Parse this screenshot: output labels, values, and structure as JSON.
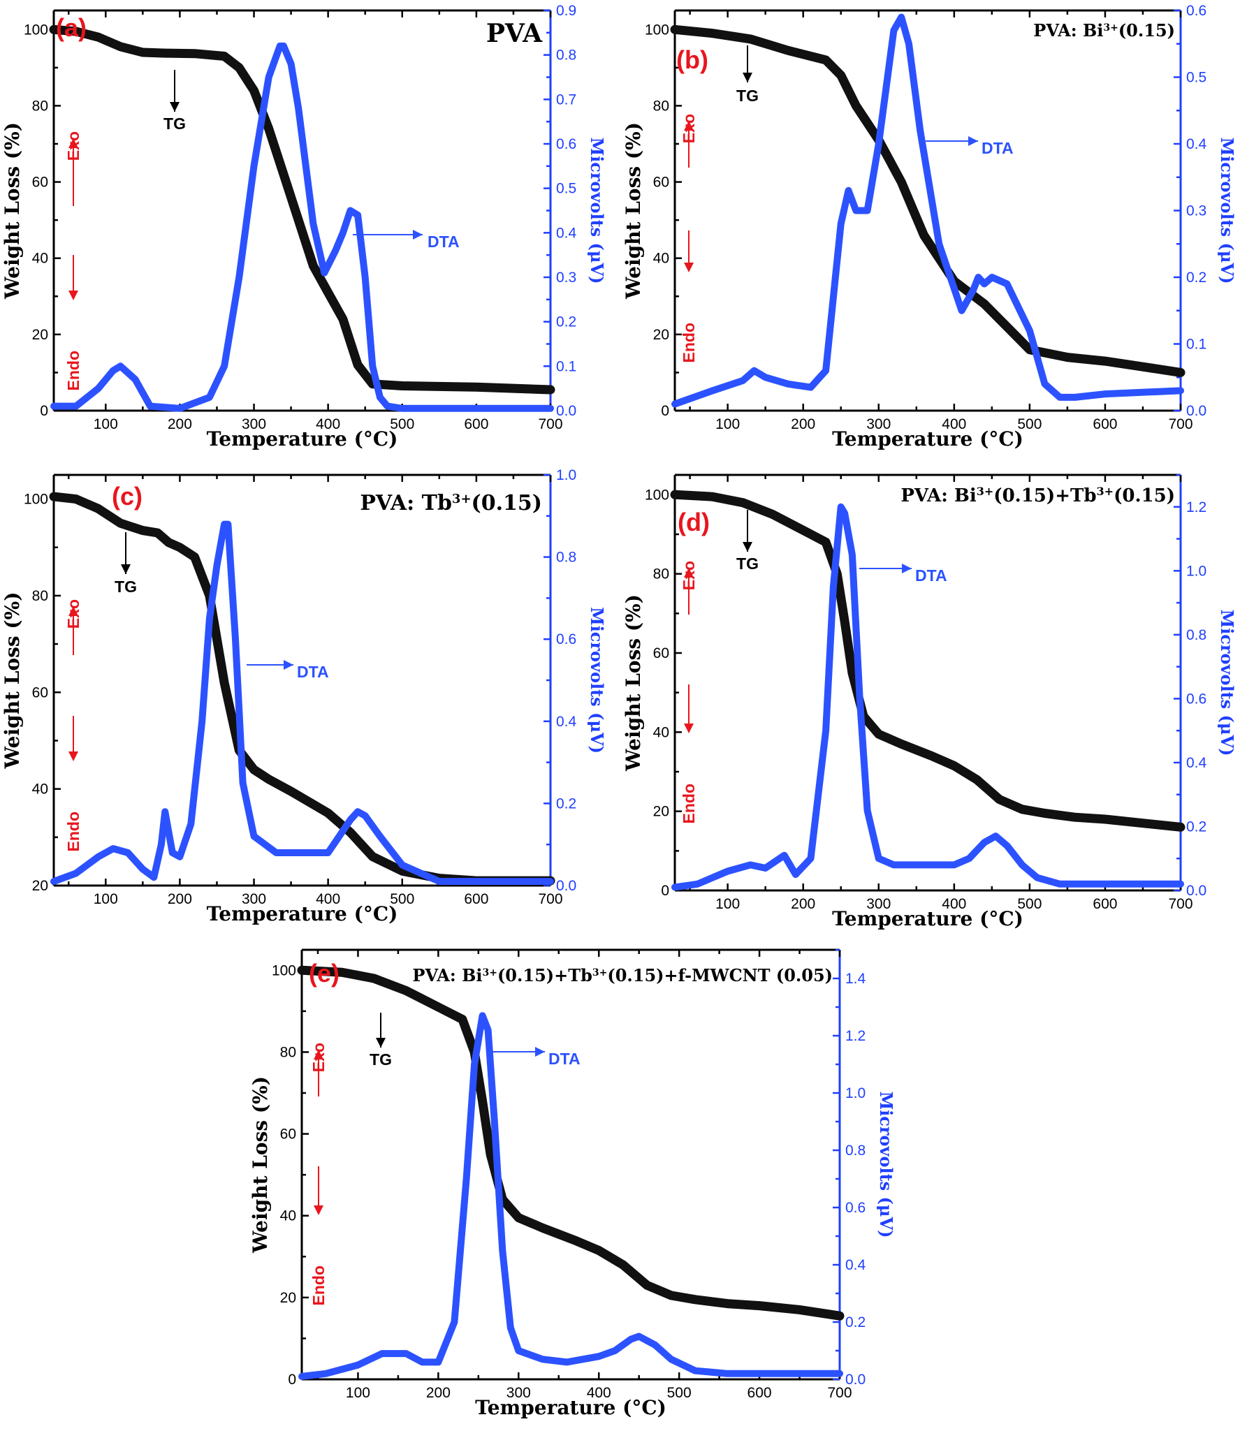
{
  "figure": {
    "x_axis_label": "Temperature (°C)",
    "left_axis_label": "Weight Loss (%)",
    "right_axis_label": "Microvolts (μV)",
    "tg_label": "TG",
    "dta_label": "DTA",
    "exo_label": "Exo",
    "endo_label": "Endo",
    "colors": {
      "tg": "#111111",
      "dta": "#2c52ff",
      "panel_letter": "#e8161d",
      "exo_endo": "#e8161d"
    }
  },
  "chart_data": [
    {
      "type": "line",
      "panel": "(a)",
      "title": "PVA",
      "xlabel": "Temperature (°C)",
      "ylabel": "Weight Loss (%)",
      "y2label": "Microvolts (μV)",
      "xlim": [
        30,
        700
      ],
      "ylim": [
        0,
        105
      ],
      "y2lim": [
        0,
        0.9
      ],
      "xticks": [
        100,
        200,
        300,
        400,
        500,
        600,
        700
      ],
      "yticks": [
        0,
        20,
        40,
        60,
        80,
        100
      ],
      "y2ticks": [
        0.0,
        0.1,
        0.2,
        0.3,
        0.4,
        0.5,
        0.6,
        0.7,
        0.8,
        0.9
      ],
      "series": [
        {
          "name": "TG",
          "axis": "left",
          "color": "#111111",
          "x": [
            30,
            60,
            90,
            120,
            150,
            180,
            220,
            260,
            280,
            300,
            320,
            340,
            360,
            380,
            400,
            420,
            440,
            460,
            500,
            600,
            700
          ],
          "y": [
            100,
            99.5,
            98,
            95.5,
            94,
            93.8,
            93.7,
            93,
            90,
            84,
            74,
            62,
            50,
            38,
            31,
            24,
            12,
            7,
            6.5,
            6.2,
            5.5
          ]
        },
        {
          "name": "DTA",
          "axis": "right",
          "color": "#2c52ff",
          "x": [
            30,
            60,
            90,
            110,
            120,
            140,
            160,
            200,
            240,
            260,
            280,
            300,
            320,
            335,
            340,
            350,
            360,
            380,
            395,
            410,
            420,
            430,
            440,
            450,
            460,
            470,
            480,
            500,
            600,
            700
          ],
          "y": [
            0.01,
            0.01,
            0.05,
            0.09,
            0.1,
            0.07,
            0.01,
            0.005,
            0.03,
            0.1,
            0.3,
            0.55,
            0.75,
            0.82,
            0.82,
            0.78,
            0.68,
            0.42,
            0.31,
            0.36,
            0.4,
            0.45,
            0.44,
            0.3,
            0.1,
            0.03,
            0.01,
            0.005,
            0.005,
            0.005
          ]
        }
      ]
    },
    {
      "type": "line",
      "panel": "(b)",
      "title": "PVA: Bi³⁺(0.15)",
      "xlabel": "Temperature (°C)",
      "ylabel": "Weight Loss (%)",
      "y2label": "Microvolts (μV)",
      "xlim": [
        30,
        700
      ],
      "ylim": [
        0,
        105
      ],
      "y2lim": [
        0,
        0.6
      ],
      "xticks": [
        100,
        200,
        300,
        400,
        500,
        600,
        700
      ],
      "yticks": [
        0,
        20,
        40,
        60,
        80,
        100
      ],
      "y2ticks": [
        0.0,
        0.1,
        0.2,
        0.3,
        0.4,
        0.5,
        0.6
      ],
      "series": [
        {
          "name": "TG",
          "axis": "left",
          "color": "#111111",
          "x": [
            30,
            80,
            130,
            180,
            230,
            250,
            270,
            300,
            330,
            360,
            400,
            440,
            470,
            500,
            550,
            600,
            650,
            700
          ],
          "y": [
            100,
            99,
            97.5,
            94.5,
            92,
            88,
            80,
            71,
            60,
            46,
            34,
            28,
            22,
            16,
            14,
            13,
            11.5,
            10
          ]
        },
        {
          "name": "DTA",
          "axis": "right",
          "color": "#2c52ff",
          "x": [
            30,
            80,
            120,
            135,
            150,
            180,
            210,
            230,
            250,
            260,
            270,
            285,
            300,
            320,
            330,
            340,
            355,
            380,
            410,
            425,
            432,
            440,
            450,
            470,
            500,
            520,
            540,
            560,
            600,
            700
          ],
          "y": [
            0.01,
            0.03,
            0.045,
            0.06,
            0.05,
            0.04,
            0.035,
            0.06,
            0.28,
            0.33,
            0.3,
            0.3,
            0.4,
            0.57,
            0.59,
            0.55,
            0.42,
            0.25,
            0.15,
            0.18,
            0.2,
            0.19,
            0.2,
            0.19,
            0.12,
            0.04,
            0.02,
            0.02,
            0.025,
            0.03
          ]
        }
      ]
    },
    {
      "type": "line",
      "panel": "(c)",
      "title": "PVA: Tb³⁺(0.15)",
      "xlabel": "Temperature (°C)",
      "ylabel": "Weight Loss (%)",
      "y2label": "Microvolts (μV)",
      "xlim": [
        30,
        700
      ],
      "ylim": [
        20,
        105
      ],
      "y2lim": [
        0,
        1.0
      ],
      "xticks": [
        100,
        200,
        300,
        400,
        500,
        600,
        700
      ],
      "yticks": [
        20,
        40,
        60,
        80,
        100
      ],
      "y2ticks": [
        0.0,
        0.2,
        0.4,
        0.6,
        0.8,
        1.0
      ],
      "series": [
        {
          "name": "TG",
          "axis": "left",
          "color": "#111111",
          "x": [
            30,
            60,
            90,
            120,
            150,
            170,
            185,
            200,
            220,
            240,
            260,
            280,
            300,
            320,
            350,
            400,
            430,
            460,
            500,
            550,
            600,
            700
          ],
          "y": [
            100.5,
            100,
            98,
            95,
            93.5,
            93,
            91,
            90,
            88,
            80,
            62,
            48,
            44,
            42,
            39.5,
            35,
            31,
            26,
            23,
            21.5,
            21,
            21
          ]
        },
        {
          "name": "DTA",
          "axis": "right",
          "color": "#2c52ff",
          "x": [
            30,
            60,
            90,
            110,
            130,
            150,
            165,
            175,
            180,
            190,
            200,
            215,
            230,
            240,
            250,
            260,
            265,
            275,
            285,
            300,
            330,
            360,
            400,
            430,
            440,
            450,
            470,
            500,
            550,
            600,
            700
          ],
          "y": [
            0.01,
            0.03,
            0.07,
            0.09,
            0.08,
            0.04,
            0.02,
            0.1,
            0.18,
            0.08,
            0.07,
            0.15,
            0.4,
            0.65,
            0.78,
            0.88,
            0.88,
            0.6,
            0.25,
            0.12,
            0.08,
            0.08,
            0.08,
            0.16,
            0.18,
            0.17,
            0.12,
            0.05,
            0.01,
            0.01,
            0.01
          ]
        }
      ]
    },
    {
      "type": "line",
      "panel": "(d)",
      "title": "PVA: Bi³⁺(0.15)+Tb³⁺(0.15)",
      "xlabel": "Temperature (°C)",
      "ylabel": "Weight Loss (%)",
      "y2label": "Microvolts (μV)",
      "xlim": [
        30,
        700
      ],
      "ylim": [
        0,
        105
      ],
      "y2lim": [
        0,
        1.3
      ],
      "xticks": [
        100,
        200,
        300,
        400,
        500,
        600,
        700
      ],
      "yticks": [
        0,
        20,
        40,
        60,
        80,
        100
      ],
      "y2ticks": [
        0.0,
        0.2,
        0.4,
        0.6,
        0.8,
        1.0,
        1.2
      ],
      "series": [
        {
          "name": "TG",
          "axis": "left",
          "color": "#111111",
          "x": [
            30,
            80,
            120,
            160,
            200,
            230,
            245,
            255,
            265,
            280,
            300,
            330,
            370,
            400,
            430,
            460,
            490,
            520,
            560,
            600,
            650,
            700
          ],
          "y": [
            100,
            99.5,
            98,
            95,
            91,
            88,
            80,
            68,
            55,
            44,
            39.5,
            37,
            34,
            31.5,
            28,
            23,
            20.5,
            19.5,
            18.5,
            18,
            17,
            16
          ]
        },
        {
          "name": "DTA",
          "axis": "right",
          "color": "#2c52ff",
          "x": [
            30,
            60,
            100,
            130,
            150,
            175,
            190,
            210,
            230,
            240,
            250,
            255,
            265,
            275,
            285,
            300,
            320,
            360,
            400,
            420,
            440,
            455,
            470,
            490,
            510,
            540,
            600,
            700
          ],
          "y": [
            0.01,
            0.02,
            0.06,
            0.08,
            0.07,
            0.11,
            0.05,
            0.1,
            0.5,
            0.95,
            1.2,
            1.18,
            1.05,
            0.6,
            0.25,
            0.1,
            0.08,
            0.08,
            0.08,
            0.1,
            0.15,
            0.17,
            0.14,
            0.08,
            0.04,
            0.02,
            0.02,
            0.02
          ]
        }
      ]
    },
    {
      "type": "line",
      "panel": "(e)",
      "title": "PVA: Bi³⁺(0.15)+Tb³⁺(0.15)+f-MWCNT (0.05)",
      "xlabel": "Temperature (°C)",
      "ylabel": "Weight Loss (%)",
      "y2label": "Microvolts (μV)",
      "xlim": [
        30,
        700
      ],
      "ylim": [
        0,
        105
      ],
      "y2lim": [
        0,
        1.5
      ],
      "xticks": [
        100,
        200,
        300,
        400,
        500,
        600,
        700
      ],
      "yticks": [
        0,
        20,
        40,
        60,
        80,
        100
      ],
      "y2ticks": [
        0.0,
        0.2,
        0.4,
        0.6,
        0.8,
        1.0,
        1.2,
        1.4
      ],
      "series": [
        {
          "name": "TG",
          "axis": "left",
          "color": "#111111",
          "x": [
            30,
            80,
            120,
            160,
            200,
            230,
            245,
            255,
            265,
            280,
            300,
            330,
            370,
            400,
            430,
            460,
            490,
            520,
            560,
            600,
            650,
            700
          ],
          "y": [
            100,
            99.5,
            98,
            95,
            91,
            88,
            80,
            68,
            55,
            44,
            39.5,
            37,
            34,
            31.5,
            28,
            23,
            20.5,
            19.5,
            18.5,
            18,
            17,
            15.5
          ]
        },
        {
          "name": "DTA",
          "axis": "right",
          "color": "#2c52ff",
          "x": [
            30,
            60,
            100,
            130,
            160,
            180,
            200,
            220,
            235,
            245,
            255,
            262,
            270,
            280,
            290,
            300,
            330,
            360,
            400,
            420,
            440,
            450,
            470,
            490,
            520,
            560,
            600,
            700
          ],
          "y": [
            0.01,
            0.02,
            0.05,
            0.09,
            0.09,
            0.06,
            0.06,
            0.2,
            0.7,
            1.1,
            1.27,
            1.22,
            0.9,
            0.45,
            0.18,
            0.1,
            0.07,
            0.06,
            0.08,
            0.1,
            0.14,
            0.15,
            0.12,
            0.07,
            0.03,
            0.02,
            0.02,
            0.02
          ]
        }
      ]
    }
  ]
}
